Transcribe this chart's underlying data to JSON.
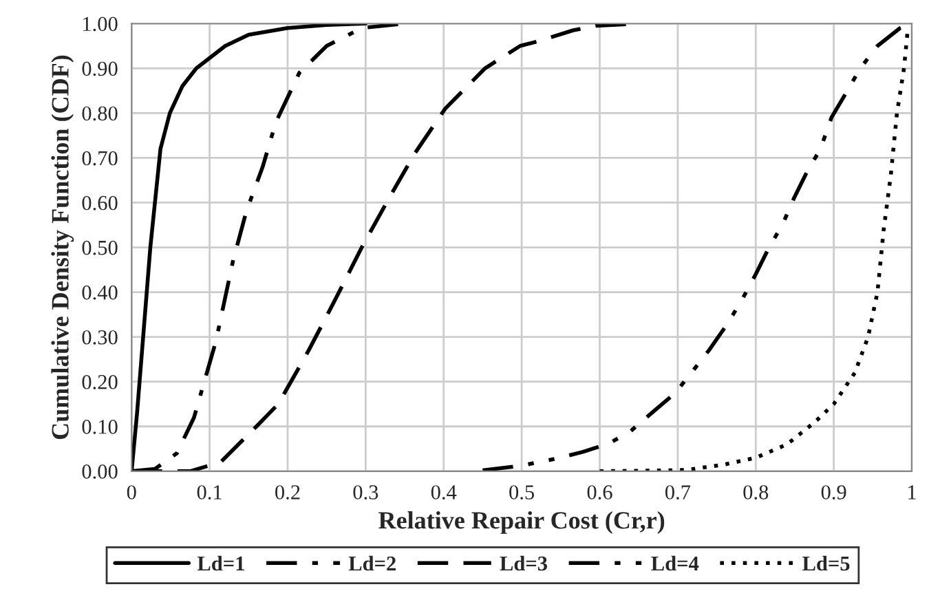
{
  "chart_data": {
    "type": "line",
    "xlabel": "Relative Repair Cost (Cr,r)",
    "ylabel": "Cumulative Density Function (CDF)",
    "xlim": [
      0,
      1
    ],
    "xticks": [
      0,
      0.1,
      0.2,
      0.3,
      0.4,
      0.5,
      0.6,
      0.7,
      0.8,
      0.9,
      1
    ],
    "ylim": [
      0,
      1
    ],
    "yticks": [
      {
        "value": 0,
        "label": "0.00"
      },
      {
        "value": 0.1,
        "label": "0.10"
      },
      {
        "value": 0.2,
        "label": "0.20"
      },
      {
        "value": 0.3,
        "label": "0.30"
      },
      {
        "value": 0.4,
        "label": "0.40"
      },
      {
        "value": 0.5,
        "label": "0.50"
      },
      {
        "value": 0.6,
        "label": "0.60"
      },
      {
        "value": 0.7,
        "label": "0.70"
      },
      {
        "value": 0.8,
        "label": "0.80"
      },
      {
        "value": 0.9,
        "label": "0.90"
      },
      {
        "value": 1,
        "label": "1.00"
      }
    ],
    "grid": true,
    "legend": "bottom",
    "marker": "none",
    "series": [
      {
        "name": "Ld=1",
        "color": "#000000",
        "line_style": "solid",
        "x": [
          0,
          0.007,
          0.024,
          0.037,
          0.049,
          0.065,
          0.083,
          0.12,
          0.15,
          0.2,
          0.25,
          0.3
        ],
        "values": [
          0,
          0.13,
          0.5,
          0.72,
          0.8,
          0.86,
          0.9,
          0.95,
          0.975,
          0.99,
          0.997,
          1
        ]
      },
      {
        "name": "Ld=2",
        "color": "#000000",
        "line_style": "dashdot",
        "x": [
          0,
          0.03,
          0.058,
          0.08,
          0.108,
          0.13,
          0.147,
          0.168,
          0.185,
          0.215,
          0.25,
          0.295,
          0.35
        ],
        "values": [
          0,
          0.005,
          0.04,
          0.12,
          0.29,
          0.47,
          0.58,
          0.68,
          0.78,
          0.89,
          0.95,
          0.99,
          1
        ]
      },
      {
        "name": "Ld=3",
        "color": "#000000",
        "line_style": "dashed",
        "x": [
          0,
          0.075,
          0.114,
          0.16,
          0.188,
          0.227,
          0.26,
          0.295,
          0.33,
          0.363,
          0.402,
          0.453,
          0.498,
          0.52,
          0.566,
          0.595,
          0.65
        ],
        "values": [
          0,
          0,
          0.02,
          0.1,
          0.15,
          0.27,
          0.38,
          0.5,
          0.61,
          0.71,
          0.81,
          0.9,
          0.95,
          0.96,
          0.985,
          0.995,
          1
        ]
      },
      {
        "name": "Ld=4",
        "color": "#000000",
        "line_style": "dashdotdot",
        "x": [
          0.45,
          0.498,
          0.544,
          0.578,
          0.612,
          0.64,
          0.67,
          0.697,
          0.722,
          0.74,
          0.764,
          0.783,
          0.8,
          0.817,
          0.834,
          0.849,
          0.866,
          0.883,
          0.897,
          0.914,
          0.934,
          0.956,
          0.985,
          1
        ],
        "values": [
          0.002,
          0.012,
          0.028,
          0.043,
          0.062,
          0.09,
          0.135,
          0.175,
          0.23,
          0.27,
          0.33,
          0.385,
          0.44,
          0.5,
          0.55,
          0.61,
          0.67,
          0.72,
          0.79,
          0.84,
          0.9,
          0.95,
          0.99,
          1
        ]
      },
      {
        "name": "Ld=5",
        "color": "#000000",
        "line_style": "dotted",
        "x": [
          0.6,
          0.7,
          0.72,
          0.76,
          0.8,
          0.84,
          0.876,
          0.9,
          0.927,
          0.944,
          0.956,
          0.964,
          0.973,
          0.981,
          0.99,
          0.995
        ],
        "values": [
          0,
          0.002,
          0.005,
          0.015,
          0.03,
          0.06,
          0.11,
          0.15,
          0.22,
          0.3,
          0.4,
          0.54,
          0.66,
          0.8,
          0.9,
          0.99
        ]
      }
    ]
  }
}
